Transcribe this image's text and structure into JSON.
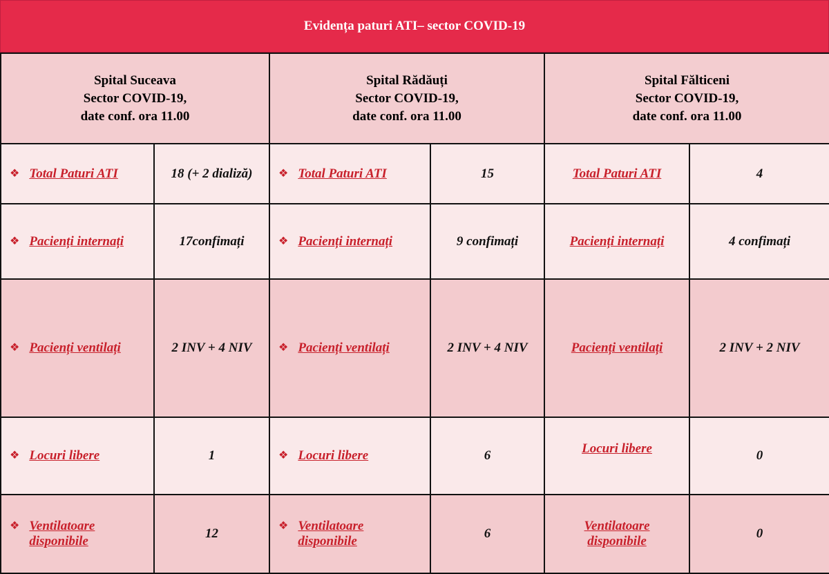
{
  "title": "Evidența paturi ATI– sector COVID-19",
  "hospitals": [
    {
      "name": "Spital Suceava",
      "sector": "Sector COVID-19,",
      "date": "date conf. ora 11.00"
    },
    {
      "name": "Spital Rădăuți",
      "sector": "Sector COVID-19,",
      "date": "date conf. ora 11.00"
    },
    {
      "name": "Spital Fălticeni",
      "sector": "Sector COVID-19,",
      "date": "date conf. ora 11.00"
    }
  ],
  "bullet_icon": "diamond-bullet-icon",
  "rows": [
    {
      "label": "Total Paturi ATI",
      "label2": "",
      "values": [
        "18 (+ 2 dializă)",
        "15",
        "4"
      ]
    },
    {
      "label": "Pacienți internați",
      "label2": "",
      "values": [
        "17confimați",
        "9 confimați",
        "4 confimați"
      ]
    },
    {
      "label": "Pacienți ventilați",
      "label2": "",
      "values": [
        "2 INV + 4 NIV",
        "2 INV + 4 NIV",
        "2 INV + 2 NIV"
      ]
    },
    {
      "label": "Locuri libere",
      "label2": "",
      "values": [
        "1",
        "6",
        "0"
      ]
    },
    {
      "label": "Ventilatoare",
      "label2": "disponibile",
      "values": [
        "12",
        "6",
        "0"
      ]
    }
  ],
  "colors": {
    "title_bg": "#e52a4a",
    "header_bg": "#f3cdd0",
    "row_light": "#fae9ea",
    "row_dark": "#f3cbce",
    "label": "#c8202b"
  }
}
